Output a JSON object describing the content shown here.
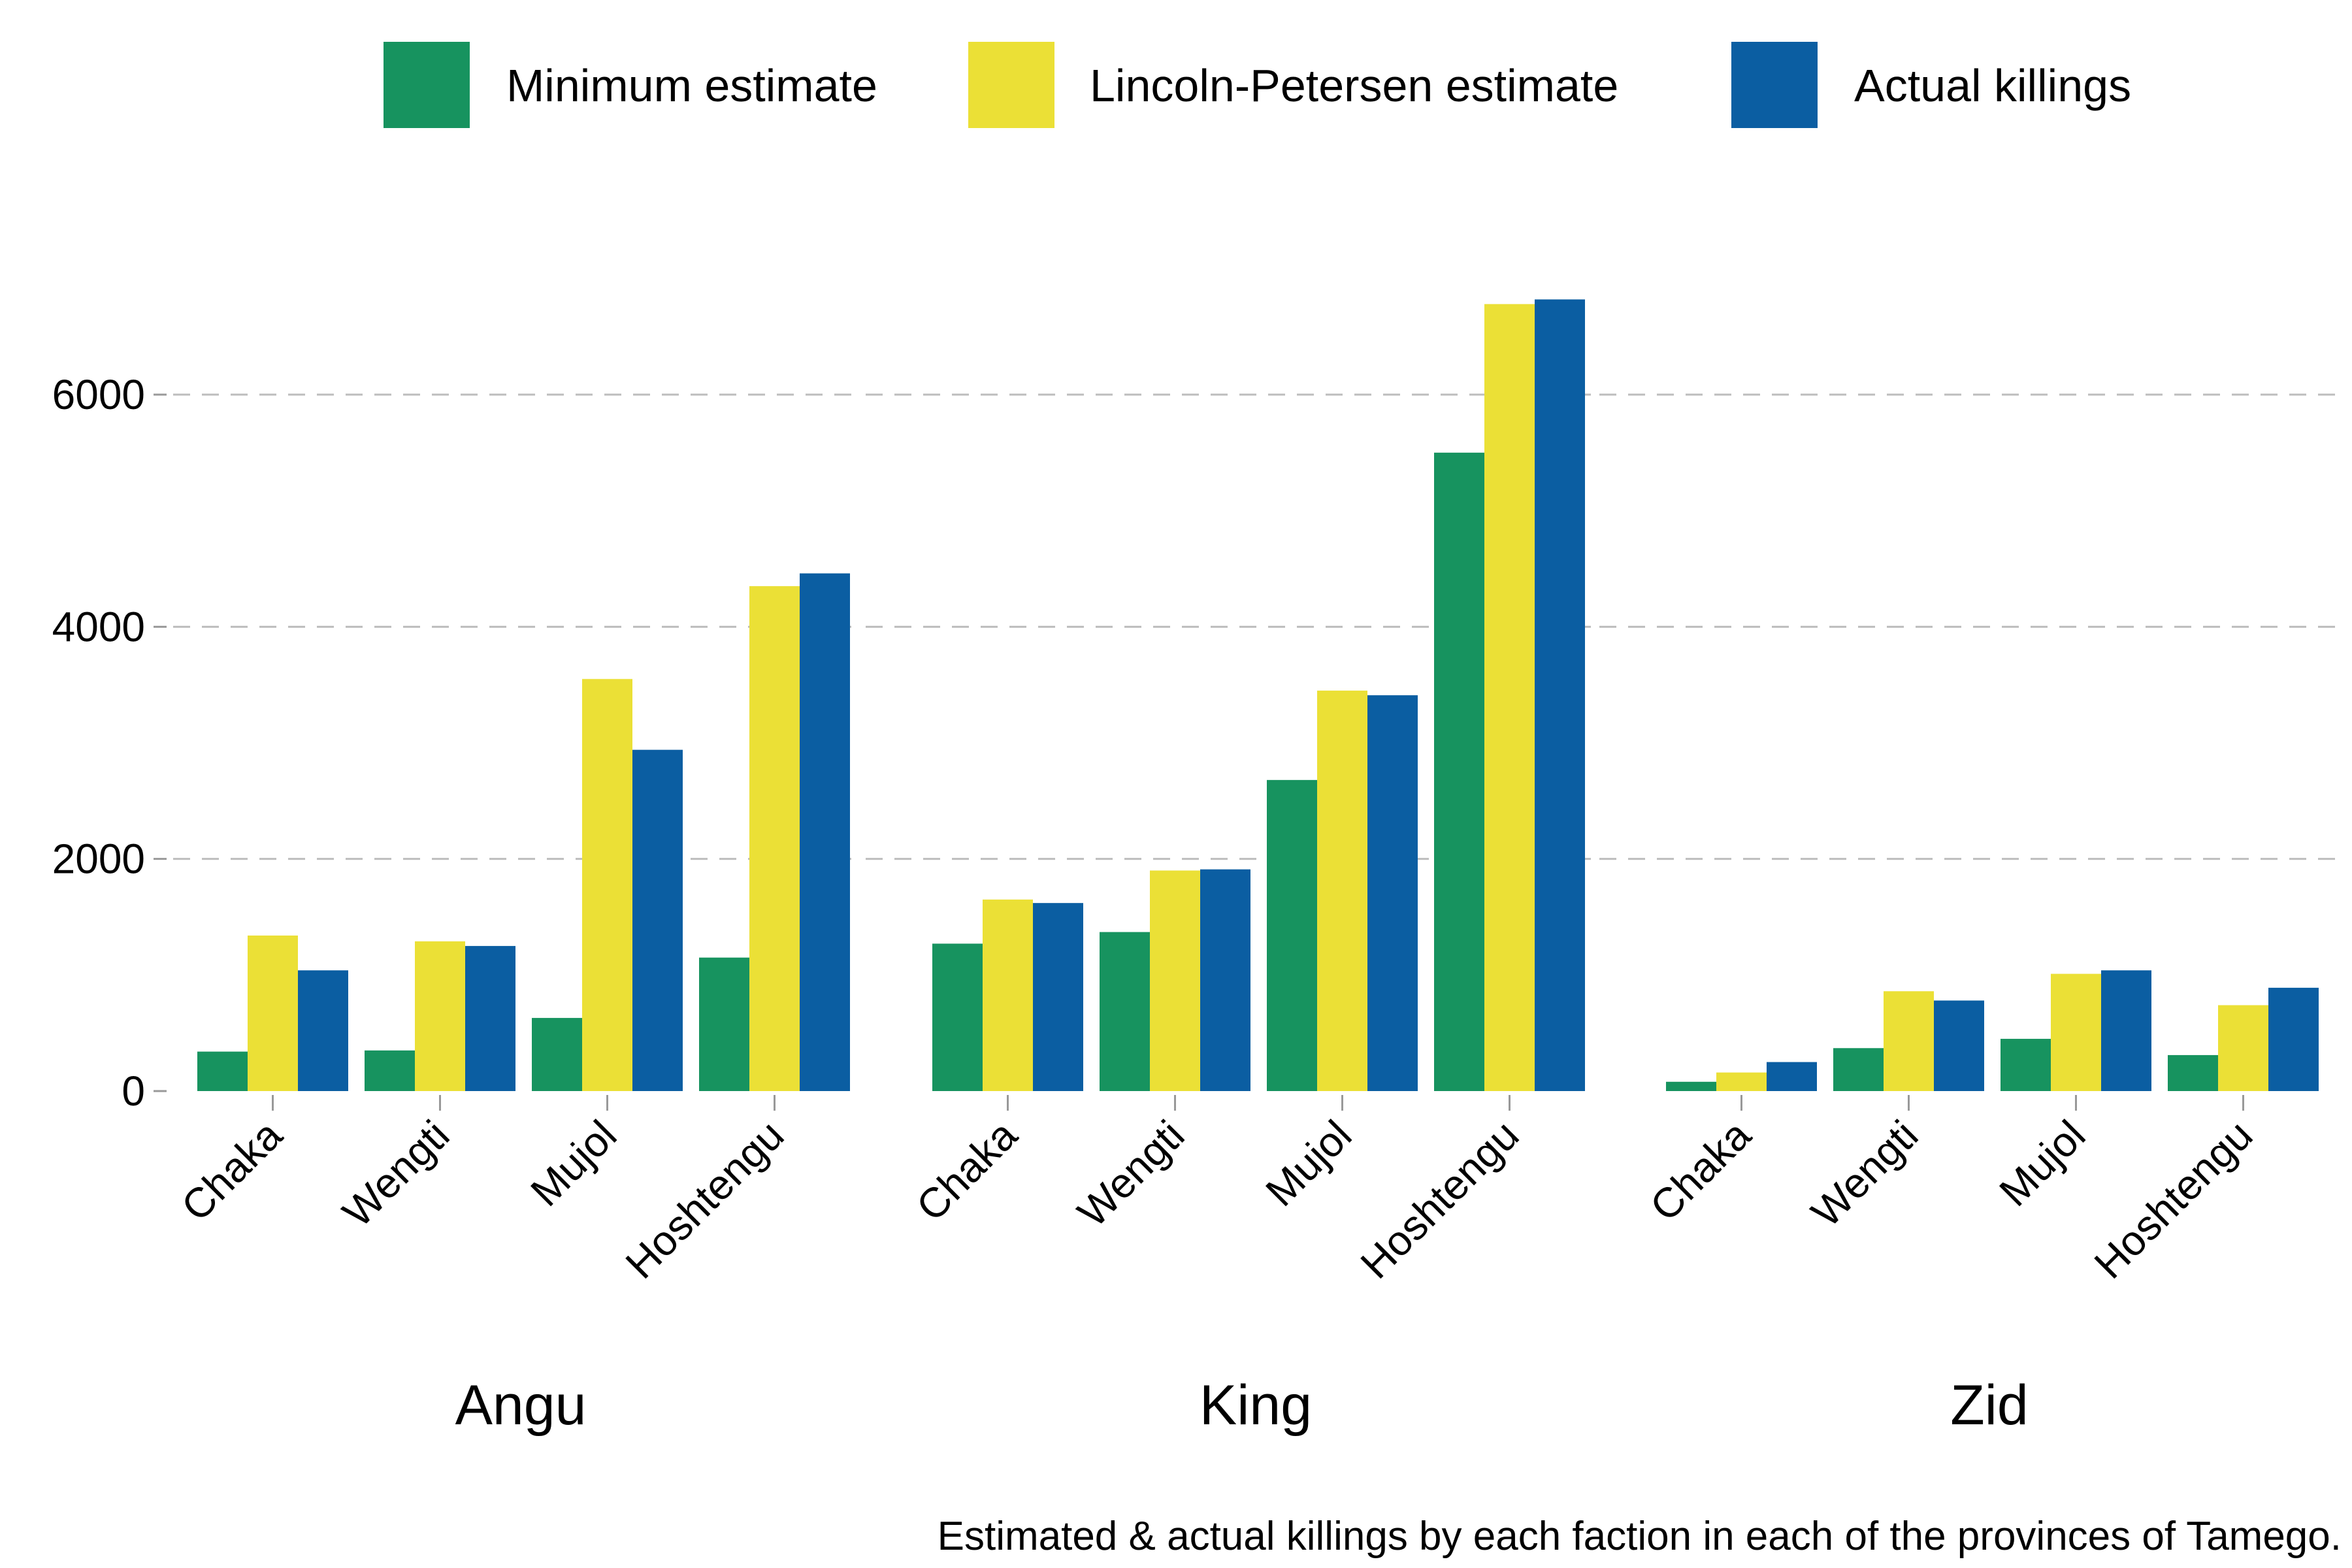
{
  "chart_data": {
    "type": "bar",
    "caption": "Estimated & actual killings by each faction in each of the provinces of Tamego.",
    "ylim": [
      0,
      7000
    ],
    "yticks": [
      0,
      2000,
      4000,
      6000
    ],
    "grid": "horizontal dashed",
    "legend_position": "top",
    "categories": [
      "Chaka",
      "Wengti",
      "Mujol",
      "Hoshtengu"
    ],
    "series": [
      {
        "name": "Minimum estimate",
        "color": "#17935f"
      },
      {
        "name": "Lincoln-Petersen estimate",
        "color": "#ebe036"
      },
      {
        "name": "Actual killings",
        "color": "#0b5ea2"
      }
    ],
    "facets": [
      {
        "name": "Angu",
        "values": [
          [
            340,
            1340,
            1040
          ],
          [
            350,
            1290,
            1250
          ],
          [
            630,
            3550,
            2940
          ],
          [
            1150,
            4350,
            4460
          ]
        ]
      },
      {
        "name": "King",
        "values": [
          [
            1270,
            1650,
            1620
          ],
          [
            1370,
            1900,
            1910
          ],
          [
            2680,
            3450,
            3410
          ],
          [
            5500,
            6780,
            6820
          ]
        ]
      },
      {
        "name": "Zid",
        "values": [
          [
            80,
            160,
            250
          ],
          [
            370,
            860,
            780
          ],
          [
            450,
            1010,
            1040
          ],
          [
            310,
            740,
            890
          ]
        ]
      }
    ]
  }
}
